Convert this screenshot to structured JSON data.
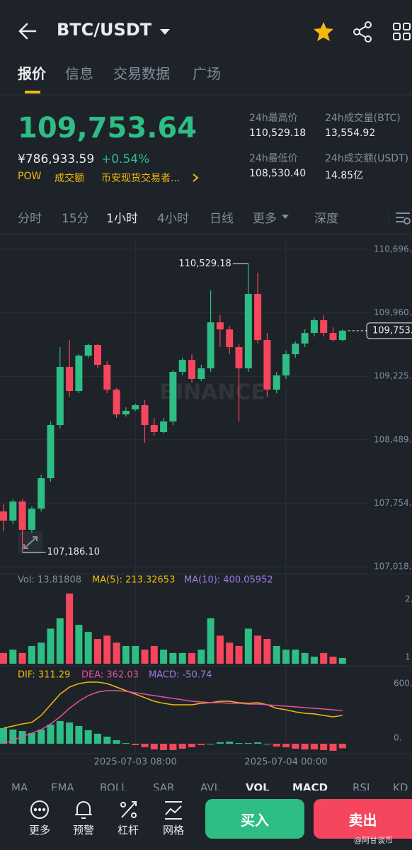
{
  "header": {
    "title": "BTC/USDT"
  },
  "tabs": [
    "报价",
    "信息",
    "交易数据",
    "广场"
  ],
  "ticker": {
    "price": "109,753.64",
    "cny": "¥786,933.59",
    "change": "+0.54%",
    "tags": [
      "POW",
      "成交额",
      "币安现货交易者..."
    ],
    "stats": [
      {
        "label": "24h最高价",
        "value": "110,529.18"
      },
      {
        "label": "24h成交量(BTC)",
        "value": "13,554.92"
      },
      {
        "label": "24h最低价",
        "value": "108,530.40"
      },
      {
        "label": "24h成交额(USDT)",
        "value": "14.85亿"
      }
    ]
  },
  "intervals": [
    "分时",
    "15分",
    "1小时",
    "4小时",
    "日线",
    "更多",
    "深度"
  ],
  "chart_data": {
    "type": "candlestick",
    "logo": "BINANCE",
    "up_color": "#2ebd85",
    "down_color": "#f6465d",
    "ylim": [
      106936,
      110795
    ],
    "yticks": [
      {
        "value": 110696,
        "label": "110,696."
      },
      {
        "value": 109960,
        "label": "109,960."
      },
      {
        "value": 109225,
        "label": "109,225."
      },
      {
        "value": 108489,
        "label": "108,489."
      },
      {
        "value": 107754,
        "label": "107,754."
      },
      {
        "value": 107018,
        "label": "107,018."
      }
    ],
    "grid": true,
    "x": [
      null,
      null,
      null,
      null,
      null,
      null,
      null,
      null,
      null,
      null,
      null,
      null,
      null,
      null,
      "2025-07-03 08:00",
      null,
      null,
      null,
      null,
      null,
      null,
      null,
      null,
      null,
      null,
      null,
      null,
      null,
      null,
      null,
      "2025-07-04 00:00",
      null,
      null,
      null,
      null,
      null,
      null
    ],
    "candles": [
      {
        "open": 107658,
        "high": 107740,
        "low": 107428,
        "close": 107552
      },
      {
        "open": 107552,
        "high": 107798,
        "low": 107511,
        "close": 107773
      },
      {
        "open": 107773,
        "high": 107798,
        "low": 107186.1,
        "close": 107445
      },
      {
        "open": 107445,
        "high": 107716,
        "low": 107412,
        "close": 107691
      },
      {
        "open": 107691,
        "high": 108085,
        "low": 107658,
        "close": 108044
      },
      {
        "open": 108044,
        "high": 108701,
        "low": 108003,
        "close": 108660
      },
      {
        "open": 108660,
        "high": 109563,
        "low": 108619,
        "close": 109333
      },
      {
        "open": 109333,
        "high": 109645,
        "low": 108988,
        "close": 109054
      },
      {
        "open": 109054,
        "high": 109481,
        "low": 109029,
        "close": 109464
      },
      {
        "open": 109464,
        "high": 109604,
        "low": 109440,
        "close": 109588
      },
      {
        "open": 109588,
        "high": 109604,
        "low": 109317,
        "close": 109358
      },
      {
        "open": 109358,
        "high": 109399,
        "low": 109029,
        "close": 109070
      },
      {
        "open": 109070,
        "high": 109087,
        "low": 108742,
        "close": 108783
      },
      {
        "open": 108783,
        "high": 108865,
        "low": 108758,
        "close": 108824
      },
      {
        "open": 108841,
        "high": 108906,
        "low": 108824,
        "close": 108890
      },
      {
        "open": 108890,
        "high": 108947,
        "low": 108455,
        "close": 108660
      },
      {
        "open": 108660,
        "high": 108742,
        "low": 108537,
        "close": 108578
      },
      {
        "open": 108578,
        "high": 108742,
        "low": 108561,
        "close": 108701
      },
      {
        "open": 108701,
        "high": 109300,
        "low": 108660,
        "close": 109276
      },
      {
        "open": 109276,
        "high": 109440,
        "low": 109235,
        "close": 109415
      },
      {
        "open": 109415,
        "high": 109481,
        "low": 109153,
        "close": 109194
      },
      {
        "open": 109194,
        "high": 109358,
        "low": 109169,
        "close": 109317
      },
      {
        "open": 109317,
        "high": 110220,
        "low": 109276,
        "close": 109850
      },
      {
        "open": 109850,
        "high": 109932,
        "low": 109563,
        "close": 109768
      },
      {
        "open": 109768,
        "high": 109809,
        "low": 109481,
        "close": 109563
      },
      {
        "open": 109563,
        "high": 109604,
        "low": 108701,
        "close": 109317
      },
      {
        "open": 109317,
        "high": 110529.18,
        "low": 109276,
        "close": 110179
      },
      {
        "open": 110179,
        "high": 110425,
        "low": 109604,
        "close": 109645
      },
      {
        "open": 109645,
        "high": 109727,
        "low": 108988,
        "close": 109070
      },
      {
        "open": 109070,
        "high": 109276,
        "low": 109029,
        "close": 109235
      },
      {
        "open": 109235,
        "high": 109522,
        "low": 109194,
        "close": 109481
      },
      {
        "open": 109481,
        "high": 109629,
        "low": 109440,
        "close": 109604
      },
      {
        "open": 109604,
        "high": 109768,
        "low": 109563,
        "close": 109727
      },
      {
        "open": 109727,
        "high": 109908,
        "low": 109686,
        "close": 109875
      },
      {
        "open": 109875,
        "high": 109932,
        "low": 109686,
        "close": 109727
      },
      {
        "open": 109727,
        "high": 109793,
        "low": 109629,
        "close": 109645
      },
      {
        "open": 109645,
        "high": 109768,
        "low": 109629,
        "close": 109753.64
      }
    ],
    "annotations": [
      {
        "value": 110529.18,
        "label": "110,529.18"
      },
      {
        "value": 107186.1,
        "label": "107,186.10"
      }
    ],
    "last_price": {
      "value": 109753.64,
      "label": "109,753."
    },
    "volume": {
      "legend": [
        {
          "text": "Vol: 13.81808",
          "color": "#848e9c"
        },
        {
          "text": "MA(5): 213.32653",
          "color": "#f0b90b"
        },
        {
          "text": "MA(10): 400.05952",
          "color": "#9c7ce0"
        }
      ],
      "axis_labels": [
        "2.",
        "1"
      ],
      "ylim": [
        0,
        175
      ],
      "values": [
        26,
        34,
        26,
        43,
        51,
        85,
        110,
        170,
        94,
        77,
        60,
        68,
        51,
        43,
        43,
        34,
        43,
        34,
        26,
        26,
        26,
        34,
        110,
        68,
        51,
        43,
        85,
        68,
        60,
        43,
        34,
        34,
        26,
        17,
        26,
        17,
        13.81808
      ]
    },
    "macd": {
      "legend": [
        {
          "text": "DIF: 311.29",
          "color": "#f0b90b"
        },
        {
          "text": "DEA: 362.03",
          "color": "#e84fa0"
        },
        {
          "text": "MACD: -50.74",
          "color": "#9c7ce0"
        }
      ],
      "ylim": [
        -94,
        819
      ],
      "yticks": [
        {
          "value": 600,
          "label": "600."
        },
        {
          "value": 0,
          "label": "0."
        }
      ],
      "dif_color": "#f0b90b",
      "dea_color": "#e84fa0",
      "dif": [
        172,
        195,
        218,
        234,
        312,
        429,
        546,
        624,
        663,
        679,
        679,
        663,
        624,
        585,
        546,
        507,
        468,
        445,
        429,
        429,
        429,
        445,
        452,
        468,
        468,
        452,
        445,
        452,
        429,
        390,
        374,
        351,
        335,
        328,
        312,
        296,
        311.29
      ],
      "dea": [
        0,
        39,
        78,
        117,
        156,
        218,
        296,
        390,
        468,
        530,
        569,
        585,
        585,
        577,
        562,
        546,
        530,
        515,
        499,
        484,
        468,
        460,
        452,
        452,
        445,
        445,
        437,
        437,
        429,
        421,
        413,
        406,
        398,
        390,
        382,
        374,
        362.03
      ],
      "hist": [
        172,
        156,
        140,
        117,
        156,
        211,
        250,
        234,
        195,
        149,
        110,
        78,
        39,
        8,
        -16,
        -39,
        -62,
        -70,
        -70,
        -55,
        -39,
        -15,
        0,
        16,
        23,
        7,
        8,
        15,
        0,
        -31,
        -39,
        -55,
        -63,
        -62,
        -70,
        -78,
        -50.74
      ]
    }
  },
  "indicators": [
    "MA",
    "EMA",
    "BOLL",
    "SAR",
    "AVL",
    "VOL",
    "MACD",
    "RSI",
    "KD"
  ],
  "toolbar": [
    "更多",
    "预警",
    "杠杆",
    "网格"
  ],
  "buttons": [
    "买入",
    "卖出"
  ],
  "watermark": "@阿甘谈币"
}
